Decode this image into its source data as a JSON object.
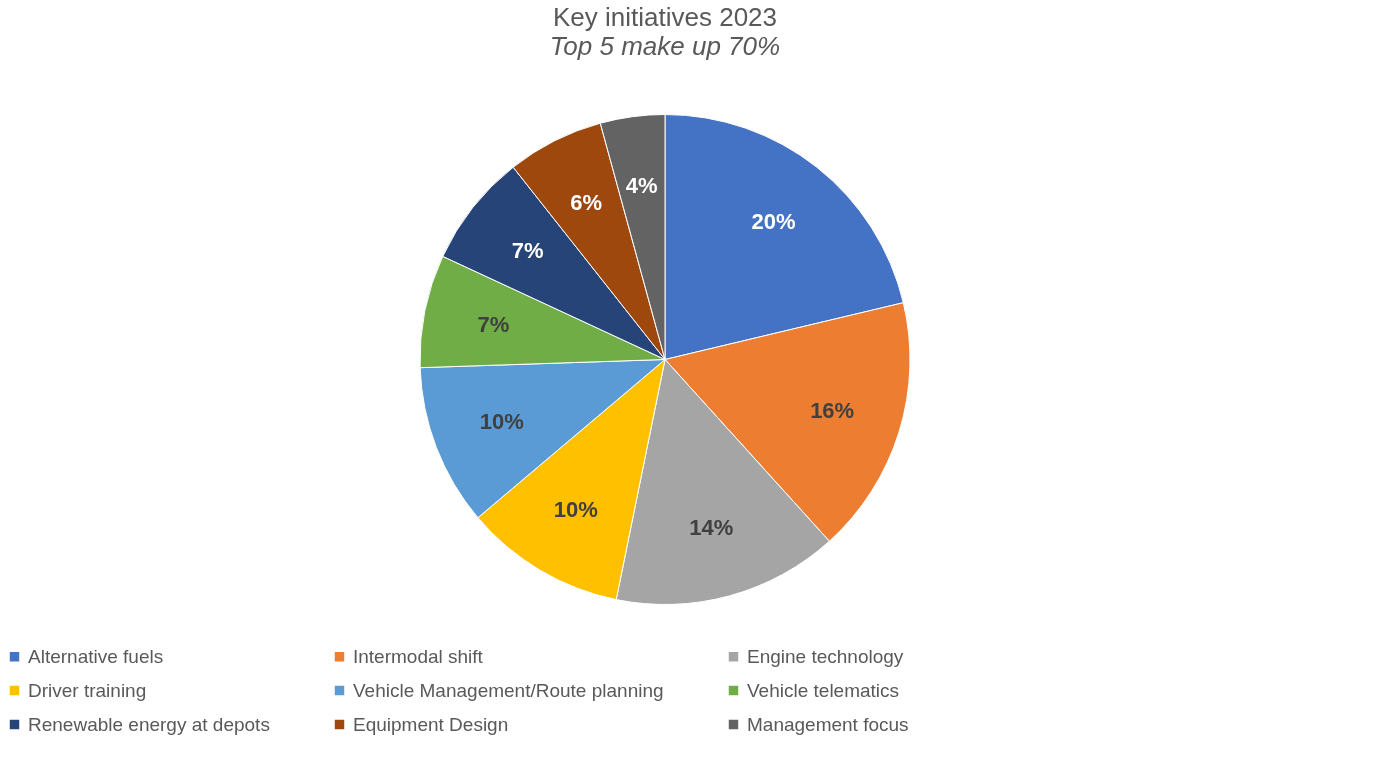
{
  "chart_data": {
    "type": "pie",
    "title": "Key initiatives 2023",
    "subtitle": "Top 5 make up 70%",
    "categories": [
      "Alternative fuels",
      "Intermodal shift",
      "Engine technology",
      "Driver training",
      "Vehicle Management/Route planning",
      "Vehicle telematics",
      "Renewable energy at depots",
      "Equipment Design",
      "Management focus"
    ],
    "values": [
      20,
      16,
      14,
      10,
      10,
      7,
      7,
      6,
      4
    ],
    "value_labels": [
      "20%",
      "16%",
      "14%",
      "10%",
      "10%",
      "7%",
      "7%",
      "6%",
      "4%"
    ],
    "colors": [
      "#4472c4",
      "#ed7d31",
      "#a5a5a5",
      "#ffc000",
      "#5b9bd5",
      "#70ad47",
      "#264478",
      "#9e480e",
      "#636363"
    ],
    "legend": "bottom"
  }
}
